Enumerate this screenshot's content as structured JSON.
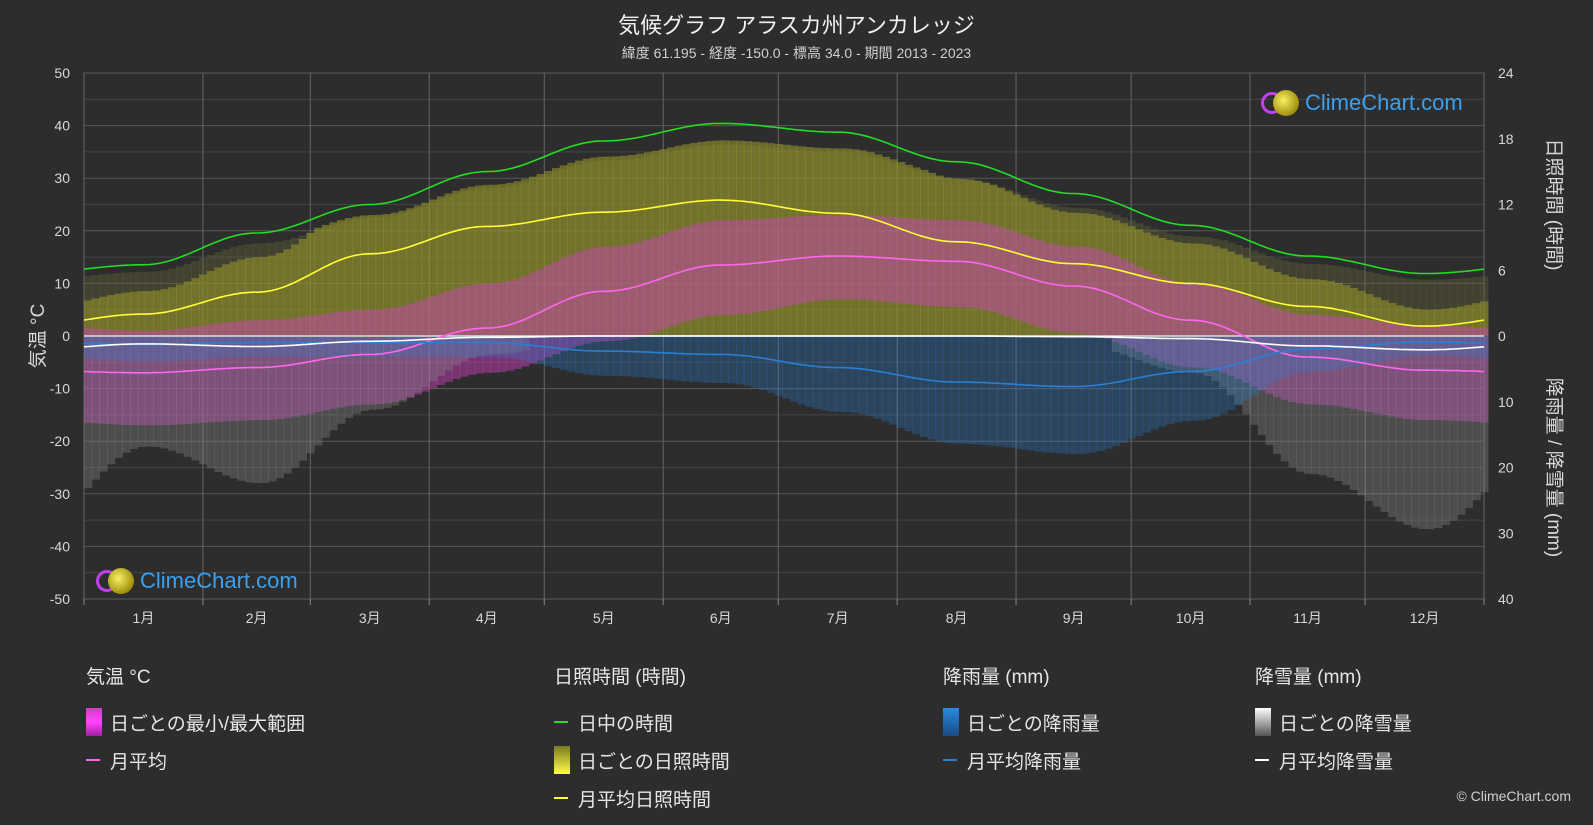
{
  "title": "気候グラフ アラスカ州アンカレッジ",
  "subtitle": "緯度 61.195 - 経度 -150.0 - 標高 34.0 - 期間 2013 - 2023",
  "copyright": "© ClimeChart.com",
  "logo_text": "ClimeChart.com",
  "colors": {
    "background": "#2d2d2d",
    "daylight": "#22dd22",
    "sunshine_avg": "#ffff33",
    "sunshine_band": "#9a9a2a",
    "temp_band": "#d040c0",
    "temp_avg": "#ff66ee",
    "rain": "#2a7fd4",
    "snow_avg": "#ffffff",
    "snow_band": "#8a8a8a"
  },
  "chart_data": {
    "type": "line",
    "x": [
      "1月",
      "2月",
      "3月",
      "4月",
      "5月",
      "6月",
      "7月",
      "8月",
      "9月",
      "10月",
      "11月",
      "12月"
    ],
    "y_left": {
      "label": "気温 °C",
      "range": [
        -50,
        50
      ],
      "ticks": [
        "50",
        "40",
        "30",
        "20",
        "10",
        "0",
        "-10",
        "-20",
        "-30",
        "-40",
        "-50"
      ]
    },
    "y_right_top": {
      "label": "日照時間 (時間)",
      "range": [
        0,
        24
      ],
      "ticks": [
        "24",
        "18",
        "12",
        "6",
        "0"
      ]
    },
    "y_right_bottom": {
      "label": "降雨量 / 降雪量 (mm)",
      "range": [
        0,
        40
      ],
      "ticks": [
        "10",
        "20",
        "30",
        "40"
      ]
    },
    "grid": true,
    "series": [
      {
        "name": "日中の時間",
        "axis": "sunshine_hours",
        "values": [
          6.5,
          9.4,
          12.0,
          15.0,
          17.8,
          19.4,
          18.6,
          15.9,
          13.0,
          10.1,
          7.3,
          5.7
        ]
      },
      {
        "name": "月平均日照時間",
        "axis": "sunshine_hours",
        "values": [
          2.0,
          4.0,
          7.5,
          10.0,
          11.3,
          12.4,
          11.2,
          8.6,
          6.6,
          4.8,
          2.7,
          0.9
        ]
      },
      {
        "name": "月平均",
        "axis": "temperature_c",
        "values": [
          -7,
          -6,
          -3.5,
          1.5,
          8.5,
          13.5,
          15.2,
          14.2,
          9.5,
          3.0,
          -4.0,
          -6.5
        ]
      },
      {
        "name": "月平均降雨量",
        "axis": "precipitation_mm",
        "values": [
          1.3,
          1.0,
          1.0,
          1.0,
          2.3,
          2.8,
          4.8,
          7.0,
          7.7,
          5.4,
          2.0,
          0.9
        ]
      },
      {
        "name": "月平均降雪量",
        "axis": "precipitation_mm",
        "values": [
          1.2,
          1.6,
          0.8,
          0.2,
          0,
          0,
          0,
          0,
          0.1,
          0.4,
          1.5,
          2.1
        ]
      }
    ],
    "temp_range_min": [
      -13,
      -12,
      -9,
      -3,
      3,
      8,
      11,
      9.5,
      4.5,
      -2,
      -9,
      -12
    ],
    "temp_range_max": [
      -2,
      0,
      2,
      7,
      14,
      19,
      20,
      19,
      14,
      7,
      1,
      -1
    ]
  },
  "legend": {
    "temperature": {
      "header": "気温 °C",
      "items": [
        "日ごとの最小/最大範囲",
        "月平均"
      ]
    },
    "sunshine": {
      "header": "日照時間 (時間)",
      "items": [
        "日中の時間",
        "日ごとの日照時間",
        "月平均日照時間"
      ]
    },
    "rain": {
      "header": "降雨量 (mm)",
      "items": [
        "日ごとの降雨量",
        "月平均降雨量"
      ]
    },
    "snow": {
      "header": "降雪量 (mm)",
      "items": [
        "日ごとの降雪量",
        "月平均降雪量"
      ]
    }
  }
}
